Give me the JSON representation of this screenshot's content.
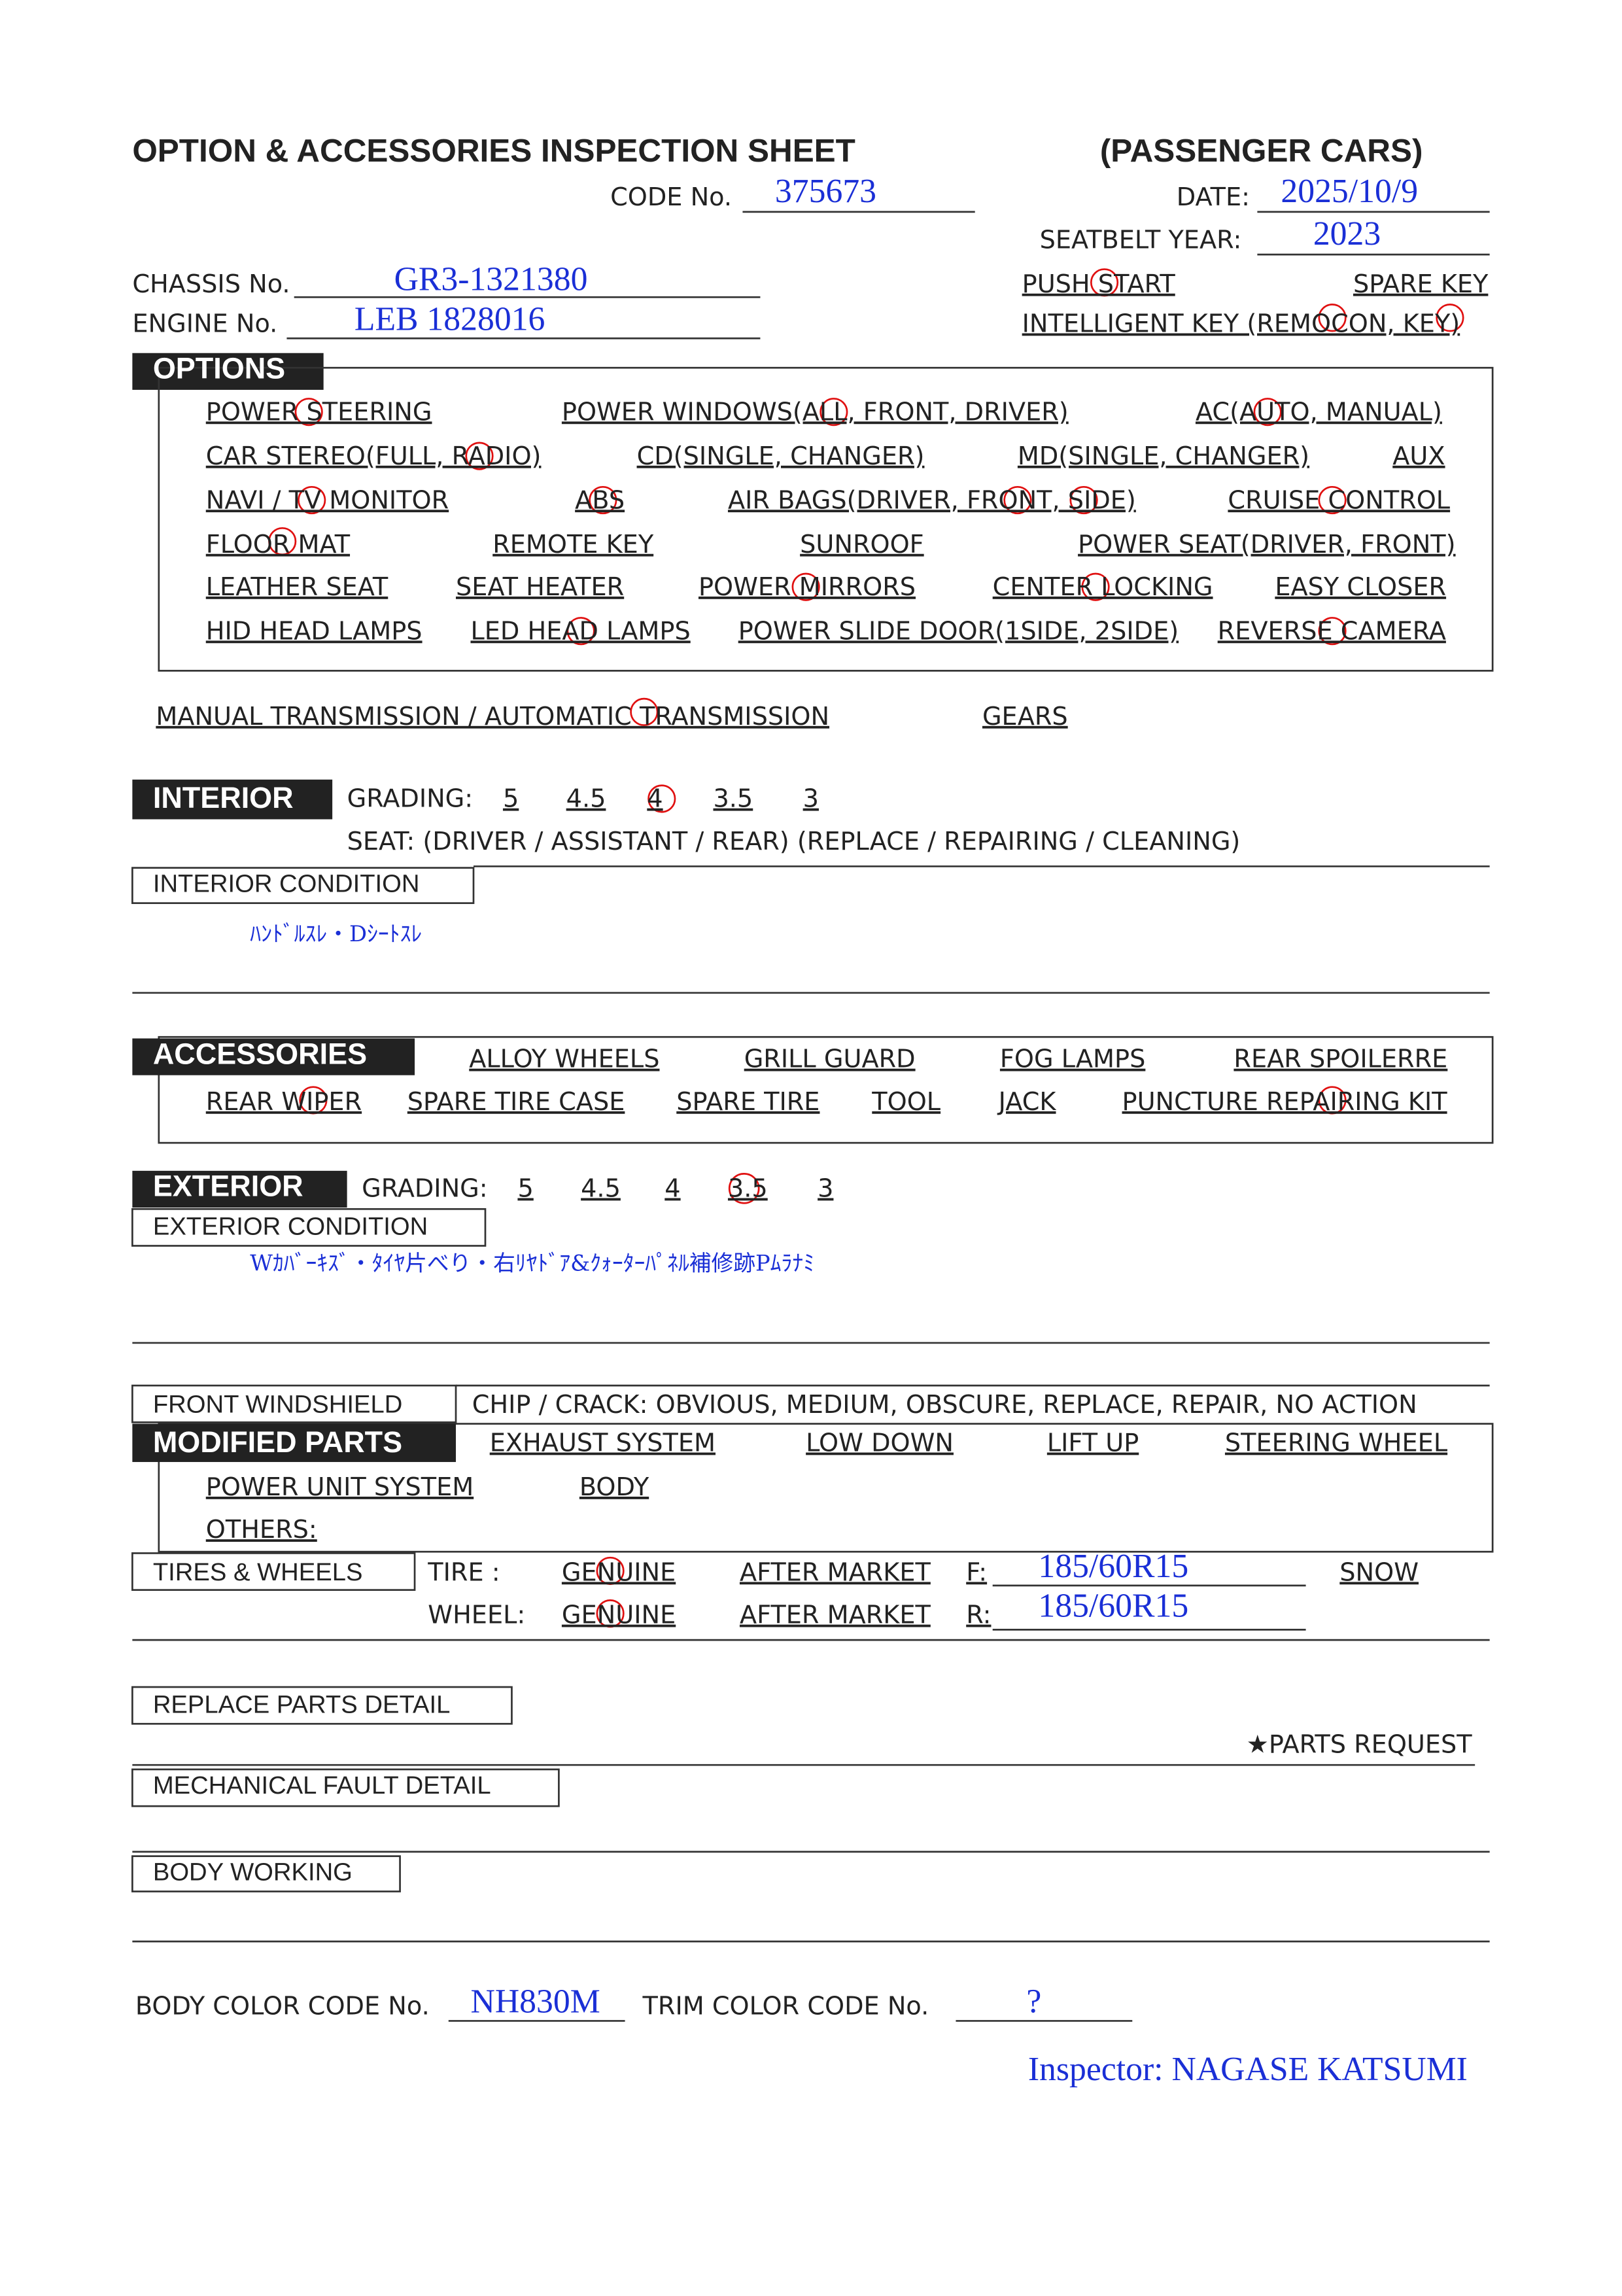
{
  "header": {
    "title": "OPTION & ACCESSORIES INSPECTION SHEET",
    "subtitle": "(PASSENGER CARS)",
    "code_label": "CODE No.",
    "code": "375673",
    "date_label": "DATE:",
    "date": "2025/10/9",
    "seatbelt_label": "SEATBELT YEAR:",
    "seatbelt_year": "2023",
    "chassis_label": "CHASSIS No.",
    "chassis": "GR3-1321380",
    "engine_label": "ENGINE No.",
    "engine": "LEB 1828016",
    "push_start": "PUSH START",
    "spare_key": "SPARE KEY",
    "intelligent_key": "INTELLIGENT KEY (REMOCON, KEY)"
  },
  "options": {
    "title": "OPTIONS",
    "rows": [
      [
        "POWER STEERING",
        "POWER WINDOWS(ALL, FRONT, DRIVER)",
        "AC(AUTO, MANUAL)"
      ],
      [
        "CAR STEREO(FULL, RADIO)",
        "CD(SINGLE, CHANGER)",
        "MD(SINGLE, CHANGER)",
        "AUX"
      ],
      [
        "NAVI / TV MONITOR",
        "ABS",
        "AIR BAGS(DRIVER, FRONT, SIDE)",
        "CRUISE CONTROL"
      ],
      [
        "FLOOR MAT",
        "REMOTE KEY",
        "SUNROOF",
        "POWER SEAT(DRIVER, FRONT)"
      ],
      [
        "LEATHER SEAT",
        "SEAT HEATER",
        "POWER MIRRORS",
        "CENTER LOCKING",
        "EASY CLOSER"
      ],
      [
        "HID HEAD LAMPS",
        "LED HEAD LAMPS",
        "POWER SLIDE DOOR(1SIDE,  2SIDE)",
        "REVERSE CAMERA"
      ]
    ]
  },
  "transmission": {
    "text": "MANUAL TRANSMISSION / AUTOMATIC TRANSMISSION",
    "gears": "GEARS"
  },
  "interior": {
    "title": "INTERIOR",
    "grading_label": "GRADING:",
    "grades": [
      "5",
      "4.5",
      "4",
      "3.5",
      "3"
    ],
    "seat": "SEAT:   (DRIVER / ASSISTANT / REAR)    (REPLACE / REPAIRING / CLEANING)",
    "condition_label": "INTERIOR CONDITION",
    "condition": "ﾊﾝﾄﾞﾙｽﾚ・Dｼｰﾄｽﾚ"
  },
  "accessories": {
    "title": "ACCESSORIES",
    "rows": [
      [
        "ALLOY WHEELS",
        "GRILL GUARD",
        "FOG LAMPS",
        "REAR SPOILERRE"
      ],
      [
        "REAR WIPER",
        "SPARE TIRE CASE",
        "SPARE TIRE",
        "TOOL",
        "JACK",
        "PUNCTURE REPAIRING KIT"
      ]
    ]
  },
  "exterior": {
    "title": "EXTERIOR",
    "grading_label": "GRADING:",
    "grades": [
      "5",
      "4.5",
      "4",
      "3.5",
      "3"
    ],
    "condition_label": "EXTERIOR CONDITION",
    "condition": "Wｶﾊﾞｰｷｽﾞ・ﾀｲﾔ片べり・右ﾘﾔﾄﾞｱ&ｸｫｰﾀｰﾊﾟﾈﾙ補修跡Pﾑﾗﾅﾐ"
  },
  "windshield": {
    "label": "FRONT WINDSHIELD",
    "text": "CHIP / CRACK:  OBVIOUS,  MEDIUM,  OBSCURE,  REPLACE,  REPAIR,  NO ACTION"
  },
  "modified_parts": {
    "title": "MODIFIED PARTS",
    "rows": [
      [
        "EXHAUST SYSTEM",
        "LOW DOWN",
        "LIFT UP",
        "STEERING WHEEL"
      ],
      [
        "POWER UNIT SYSTEM",
        "BODY"
      ]
    ],
    "others": "OTHERS:"
  },
  "tires_wheels": {
    "label": "TIRES & WHEELS",
    "tire_label": "TIRE :",
    "wheel_label": "WHEEL:",
    "genuine": "GENUINE",
    "after_market": "AFTER MARKET",
    "front_label": "F:",
    "front": "185/60R15",
    "rear_label": "R:",
    "rear": "185/60R15",
    "snow": "SNOW"
  },
  "details": {
    "replace_parts": "REPLACE PARTS DETAIL",
    "parts_request": "★PARTS REQUEST",
    "mechanical_fault": "MECHANICAL FAULT DETAIL",
    "body_working": "BODY WORKING"
  },
  "footer": {
    "body_color_label": "BODY COLOR CODE No.",
    "body_color": "NH830M",
    "trim_color_label": "TRIM COLOR CODE No.",
    "trim_color": "?",
    "inspector": "Inspector: NAGASE KATSUMI"
  }
}
